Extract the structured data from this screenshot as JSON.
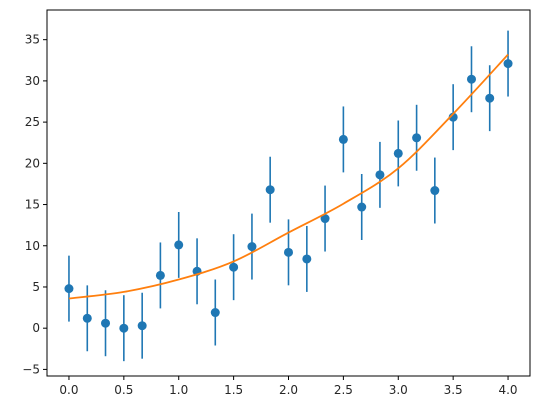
{
  "chart_data": {
    "type": "scatter",
    "title": "",
    "xlabel": "",
    "ylabel": "",
    "xlim": [
      -0.2,
      4.2
    ],
    "ylim": [
      -5.8,
      38.6
    ],
    "grid": false,
    "legend": "none",
    "x_ticks": [
      {
        "value": 0.0,
        "label": "0.0"
      },
      {
        "value": 0.5,
        "label": "0.5"
      },
      {
        "value": 1.0,
        "label": "1.0"
      },
      {
        "value": 1.5,
        "label": "1.5"
      },
      {
        "value": 2.0,
        "label": "2.0"
      },
      {
        "value": 2.5,
        "label": "2.5"
      },
      {
        "value": 3.0,
        "label": "3.0"
      },
      {
        "value": 3.5,
        "label": "3.5"
      },
      {
        "value": 4.0,
        "label": "4.0"
      }
    ],
    "y_ticks": [
      {
        "value": -5,
        "label": "−5"
      },
      {
        "value": 0,
        "label": "0"
      },
      {
        "value": 5,
        "label": "5"
      },
      {
        "value": 10,
        "label": "10"
      },
      {
        "value": 15,
        "label": "15"
      },
      {
        "value": 20,
        "label": "20"
      },
      {
        "value": 25,
        "label": "25"
      },
      {
        "value": 30,
        "label": "30"
      },
      {
        "value": 35,
        "label": "35"
      }
    ],
    "series": [
      {
        "kind": "errorbar",
        "color": "#1f77b4",
        "error": 4,
        "x": [
          0.0,
          0.167,
          0.333,
          0.5,
          0.667,
          0.833,
          1.0,
          1.167,
          1.333,
          1.5,
          1.667,
          1.833,
          2.0,
          2.167,
          2.333,
          2.5,
          2.667,
          2.833,
          3.0,
          3.167,
          3.333,
          3.5,
          3.667,
          3.833,
          4.0
        ],
        "y": [
          4.8,
          1.2,
          0.6,
          0.0,
          0.3,
          6.4,
          10.1,
          6.9,
          1.9,
          7.4,
          9.9,
          16.8,
          9.2,
          8.4,
          13.3,
          22.9,
          14.7,
          18.6,
          21.2,
          23.1,
          16.7,
          25.6,
          30.2,
          27.9,
          32.1
        ]
      },
      {
        "kind": "line",
        "color": "#ff7f0e",
        "x": [
          0.0,
          0.5,
          1.0,
          1.5,
          2.0,
          2.5,
          3.0,
          3.5,
          4.0
        ],
        "y": [
          3.6,
          4.4,
          5.9,
          8.1,
          11.6,
          15.1,
          19.4,
          26.0,
          33.2
        ]
      }
    ]
  }
}
